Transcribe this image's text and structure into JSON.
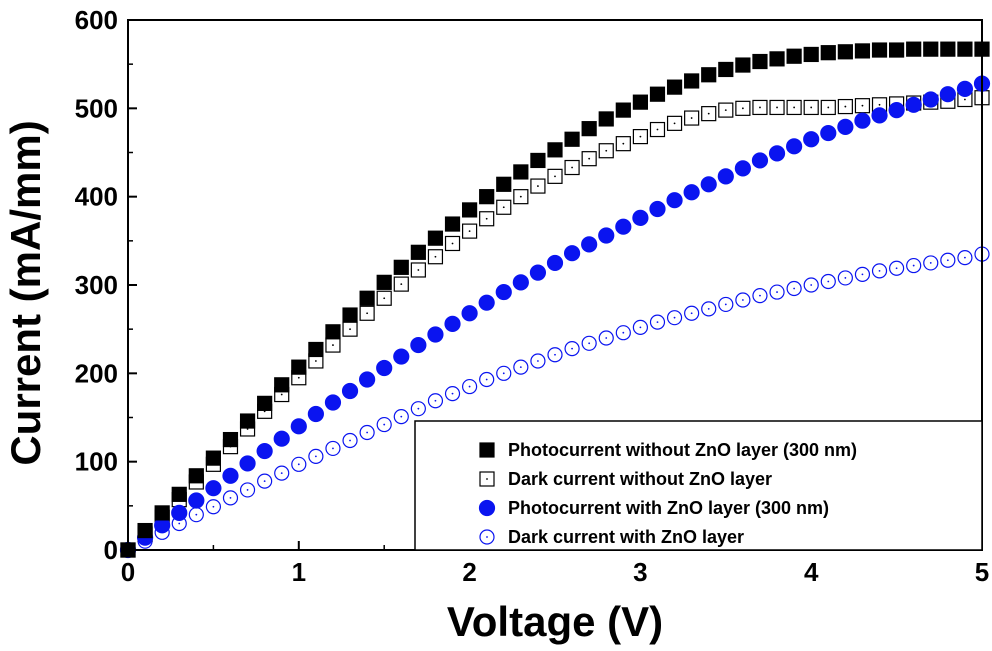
{
  "chart_data": {
    "type": "scatter",
    "xlabel": "Voltage (V)",
    "ylabel": "Current (mA/mm)",
    "xlim": [
      0,
      5
    ],
    "ylim": [
      0,
      600
    ],
    "xticks": [
      0,
      1,
      2,
      3,
      4,
      5
    ],
    "yticks": [
      0,
      100,
      200,
      300,
      400,
      500,
      600
    ],
    "grid": false,
    "legend_position": "bottom-right",
    "x": [
      0,
      0.1,
      0.2,
      0.3,
      0.4,
      0.5,
      0.6,
      0.7,
      0.8,
      0.9,
      1.0,
      1.1,
      1.2,
      1.3,
      1.4,
      1.5,
      1.6,
      1.7,
      1.8,
      1.9,
      2.0,
      2.1,
      2.2,
      2.3,
      2.4,
      2.5,
      2.6,
      2.7,
      2.8,
      2.9,
      3.0,
      3.1,
      3.2,
      3.3,
      3.4,
      3.5,
      3.6,
      3.7,
      3.8,
      3.9,
      4.0,
      4.1,
      4.2,
      4.3,
      4.4,
      4.5,
      4.6,
      4.7,
      4.8,
      4.9,
      5.0
    ],
    "series": [
      {
        "name": "Photocurrent without ZnO layer (300 nm)",
        "marker": "square-filled",
        "color": "#000000",
        "values": [
          0,
          22,
          42,
          63,
          84,
          104,
          125,
          146,
          166,
          187,
          207,
          227,
          247,
          266,
          285,
          303,
          320,
          337,
          353,
          369,
          385,
          400,
          414,
          428,
          441,
          453,
          465,
          477,
          488,
          498,
          507,
          516,
          524,
          531,
          538,
          544,
          549,
          553,
          556,
          559,
          561,
          563,
          564,
          565,
          566,
          566,
          567,
          567,
          567,
          567,
          567
        ]
      },
      {
        "name": "Dark current without ZnO layer",
        "marker": "square-open",
        "color": "#000000",
        "values": [
          0,
          18,
          37,
          57,
          77,
          97,
          117,
          137,
          157,
          176,
          195,
          214,
          232,
          250,
          268,
          285,
          301,
          317,
          332,
          347,
          361,
          375,
          388,
          400,
          412,
          423,
          433,
          443,
          452,
          460,
          468,
          476,
          483,
          489,
          494,
          498,
          500,
          501,
          501,
          501,
          501,
          501,
          502,
          503,
          504,
          505,
          506,
          507,
          508,
          510,
          512
        ]
      },
      {
        "name": "Photocurrent with ZnO layer (300 nm)",
        "marker": "circle-filled",
        "color": "#0a14f0",
        "values": [
          0,
          14,
          28,
          42,
          56,
          70,
          84,
          98,
          112,
          126,
          140,
          154,
          167,
          180,
          193,
          206,
          219,
          232,
          244,
          256,
          268,
          280,
          292,
          303,
          314,
          325,
          336,
          346,
          356,
          366,
          376,
          386,
          396,
          405,
          414,
          423,
          432,
          441,
          449,
          457,
          465,
          472,
          479,
          486,
          492,
          498,
          504,
          510,
          516,
          522,
          528
        ]
      },
      {
        "name": "Dark current with ZnO  layer",
        "marker": "circle-open",
        "color": "#0a14f0",
        "values": [
          0,
          10,
          20,
          30,
          40,
          49,
          59,
          68,
          78,
          87,
          97,
          106,
          115,
          124,
          133,
          142,
          151,
          160,
          169,
          177,
          185,
          193,
          200,
          207,
          214,
          221,
          228,
          234,
          240,
          246,
          252,
          258,
          263,
          268,
          273,
          278,
          283,
          288,
          292,
          296,
          300,
          304,
          308,
          312,
          316,
          319,
          322,
          325,
          328,
          331,
          335
        ]
      }
    ]
  }
}
